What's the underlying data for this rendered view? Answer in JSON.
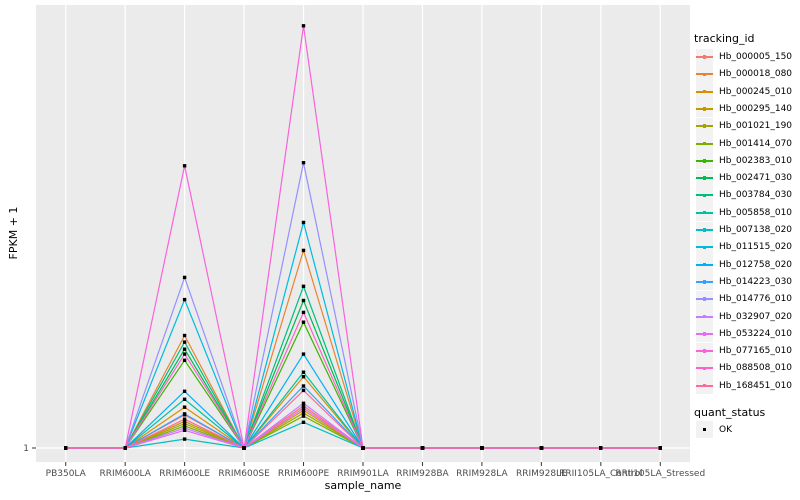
{
  "figure": {
    "y_axis_title": "FPKM + 1",
    "x_axis_title": "sample_name",
    "y_tick_labels": [
      "1"
    ]
  },
  "legend": {
    "tracking_title": "tracking_id",
    "quant_title": "quant_status",
    "quant_entries": [
      {
        "label": "OK",
        "marker": "black-square"
      }
    ]
  },
  "colors": {
    "panel_background": "#EBEBEB",
    "grid_line": "#FFFFFF",
    "tick_mark": "#333333",
    "tick_text": "#4D4D4D",
    "axis_title_text": "#000000",
    "legend_key_background": "#F2F2F2",
    "point_color": "#000000",
    "page_background": "#FFFFFF"
  },
  "chart_data": {
    "type": "line",
    "title": "",
    "xlabel": "sample_name",
    "ylabel": "FPKM + 1",
    "legend_position": "right",
    "grid": "white major gridlines on gray panel; one vertical gridline per sample, one horizontal gridline at y tick 1",
    "y_axis_note": "only labeled y tick is 1 (baseline); series values below are heights as fraction of panel height above the baseline, estimated from pixels",
    "ylim_norm": [
      0,
      1.03
    ],
    "point_marker": "small black filled square at every sample for every series",
    "categories": [
      "PB350LA",
      "RRIM600LA",
      "RRIM600LE",
      "RRIM600SE",
      "RRIM600PE",
      "RRIM901LA",
      "RRIM928BA",
      "RRIM928LA",
      "RRIM928LE",
      "RRII105LA_Control",
      "RRII105LA_Stressed"
    ],
    "series": [
      {
        "name": "Hb_000005_150",
        "color": "#F8766D",
        "values": [
          0,
          0,
          0.075,
          0,
          0.095,
          0,
          0,
          0,
          0,
          0,
          0
        ]
      },
      {
        "name": "Hb_000018_080",
        "color": "#EA8331",
        "values": [
          0,
          0,
          0.254,
          0,
          0.446,
          0,
          0,
          0,
          0,
          0,
          0
        ]
      },
      {
        "name": "Hb_000245_010",
        "color": "#D89000",
        "values": [
          0,
          0,
          0.092,
          0,
          0.161,
          0,
          0,
          0,
          0,
          0,
          0
        ]
      },
      {
        "name": "Hb_000295_140",
        "color": "#C09B00",
        "values": [
          0,
          0,
          0.06,
          0,
          0.085,
          0,
          0,
          0,
          0,
          0,
          0
        ]
      },
      {
        "name": "Hb_001021_190",
        "color": "#A3A500",
        "values": [
          0,
          0,
          0.055,
          0,
          0.079,
          0,
          0,
          0,
          0,
          0,
          0
        ]
      },
      {
        "name": "Hb_001414_070",
        "color": "#7CAE00",
        "values": [
          0,
          0,
          0.05,
          0,
          0.072,
          0,
          0,
          0,
          0,
          0,
          0
        ]
      },
      {
        "name": "Hb_002383_010",
        "color": "#39B600",
        "values": [
          0,
          0,
          0.198,
          0,
          0.284,
          0,
          0,
          0,
          0,
          0,
          0
        ]
      },
      {
        "name": "Hb_002471_030",
        "color": "#00BB4E",
        "values": [
          0,
          0,
          0.223,
          0,
          0.333,
          0,
          0,
          0,
          0,
          0,
          0
        ]
      },
      {
        "name": "Hb_003784_030",
        "color": "#00BF7D",
        "values": [
          0,
          0,
          0.239,
          0,
          0.365,
          0,
          0,
          0,
          0,
          0,
          0
        ]
      },
      {
        "name": "Hb_005858_010",
        "color": "#00C1A3",
        "values": [
          0,
          0,
          0.11,
          0,
          0.171,
          0,
          0,
          0,
          0,
          0,
          0
        ]
      },
      {
        "name": "Hb_007138_020",
        "color": "#00BFC4",
        "values": [
          0,
          0,
          0.02,
          0,
          0.058,
          0,
          0,
          0,
          0,
          0,
          0
        ]
      },
      {
        "name": "Hb_011515_020",
        "color": "#00BAE0",
        "values": [
          0,
          0,
          0.335,
          0,
          0.509,
          0,
          0,
          0,
          0,
          0,
          0
        ]
      },
      {
        "name": "Hb_012758_020",
        "color": "#00B0F6",
        "values": [
          0,
          0,
          0.128,
          0,
          0.212,
          0,
          0,
          0,
          0,
          0,
          0
        ]
      },
      {
        "name": "Hb_014223_030",
        "color": "#35A2FF",
        "values": [
          0,
          0,
          0.077,
          0,
          0.14,
          0,
          0,
          0,
          0,
          0,
          0
        ]
      },
      {
        "name": "Hb_014776_010",
        "color": "#9590FF",
        "values": [
          0,
          0,
          0.385,
          0,
          0.644,
          0,
          0,
          0,
          0,
          0,
          0
        ]
      },
      {
        "name": "Hb_032907_020",
        "color": "#C77CFF",
        "values": [
          0,
          0,
          0.045,
          0,
          0.101,
          0,
          0,
          0,
          0,
          0,
          0
        ]
      },
      {
        "name": "Hb_053224_010",
        "color": "#E76BF3",
        "values": [
          0,
          0,
          0.04,
          0,
          0.09,
          0,
          0,
          0,
          0,
          0,
          0
        ]
      },
      {
        "name": "Hb_077165_010",
        "color": "#FA62DB",
        "values": [
          0,
          0,
          0.637,
          0,
          0.953,
          0,
          0,
          0,
          0,
          0,
          0
        ]
      },
      {
        "name": "Hb_088508_010",
        "color": "#FF61CC",
        "values": [
          0,
          0,
          0.212,
          0,
          0.306,
          0,
          0,
          0,
          0,
          0,
          0
        ]
      },
      {
        "name": "Hb_168451_010",
        "color": "#FF6A98",
        "values": [
          0,
          0,
          0.065,
          0,
          0.13,
          0,
          0,
          0,
          0,
          0,
          0
        ]
      }
    ]
  }
}
